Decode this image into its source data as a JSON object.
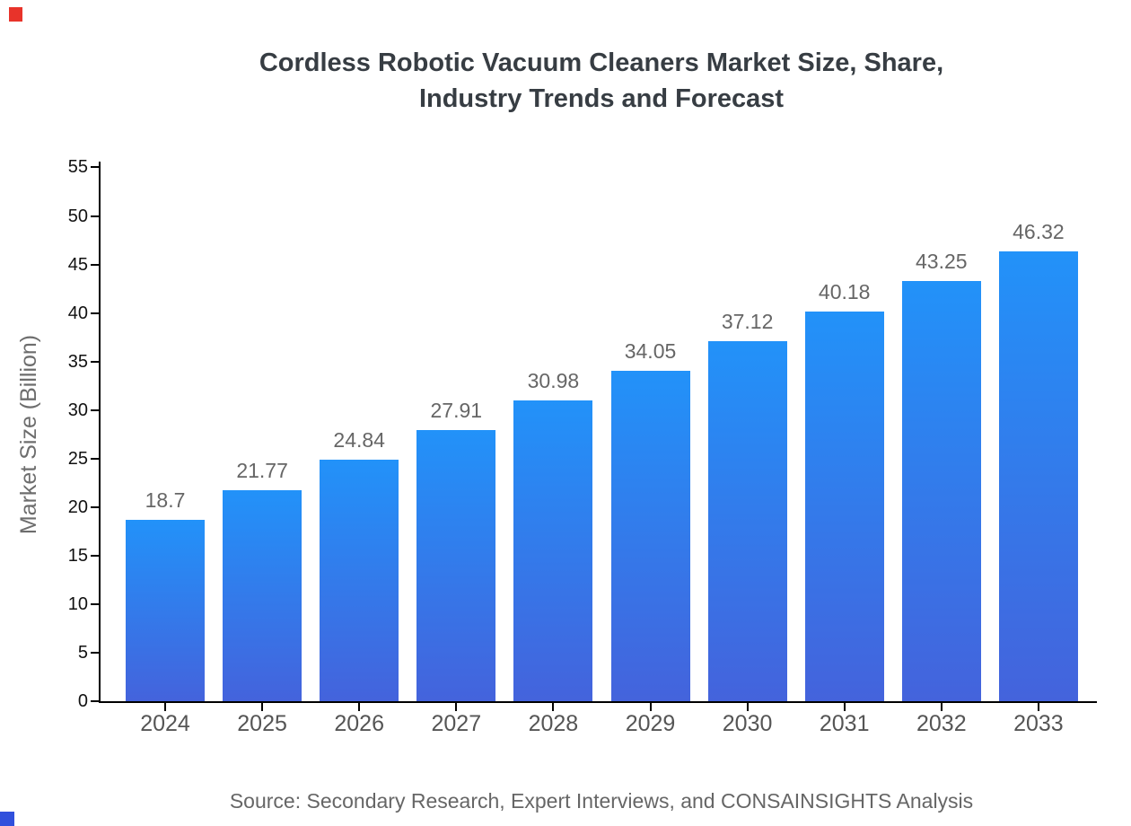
{
  "header": {
    "title_line1": "Cordless Robotic Vacuum Cleaners Market Size, Share,",
    "title_line2": "Industry Trends and Forecast"
  },
  "footer": {
    "source": "Source: Secondary Research, Expert Interviews, and CONSAINSIGHTS Analysis"
  },
  "colors": {
    "title_text": "#373d43",
    "bar_gradient_top": "#2292f9",
    "bar_gradient_bottom": "#4463dc",
    "axis_line": "#000000",
    "y_tick_label": "#111111",
    "x_tick_label": "#555555",
    "value_label": "#666666",
    "y_axis_title": "#6d6d6d",
    "source_text": "#666666",
    "corner_marker_red": "#e8332a",
    "corner_marker_blue": "#3150dc"
  },
  "chart_data": {
    "type": "bar",
    "title": "Cordless Robotic Vacuum Cleaners Market Size, Share, Industry Trends and Forecast",
    "categories": [
      "2024",
      "2025",
      "2026",
      "2027",
      "2028",
      "2029",
      "2030",
      "2031",
      "2032",
      "2033"
    ],
    "values": [
      18.7,
      21.77,
      24.84,
      27.91,
      30.98,
      34.05,
      37.12,
      40.18,
      43.25,
      46.32
    ],
    "value_labels": [
      "18.7",
      "21.77",
      "24.84",
      "27.91",
      "30.98",
      "34.05",
      "37.12",
      "40.18",
      "43.25",
      "46.32"
    ],
    "xlabel": "",
    "ylabel": "Market Size (Billion)",
    "ylim": [
      0,
      55
    ],
    "ytick_step": 5,
    "ytick_labels": [
      "0",
      "5",
      "10",
      "15",
      "20",
      "25",
      "30",
      "35",
      "40",
      "45",
      "50",
      "55"
    ],
    "grid": false,
    "legend": "none",
    "bar_style": "vertical blue gradient, light azure top to royal blue bottom"
  }
}
